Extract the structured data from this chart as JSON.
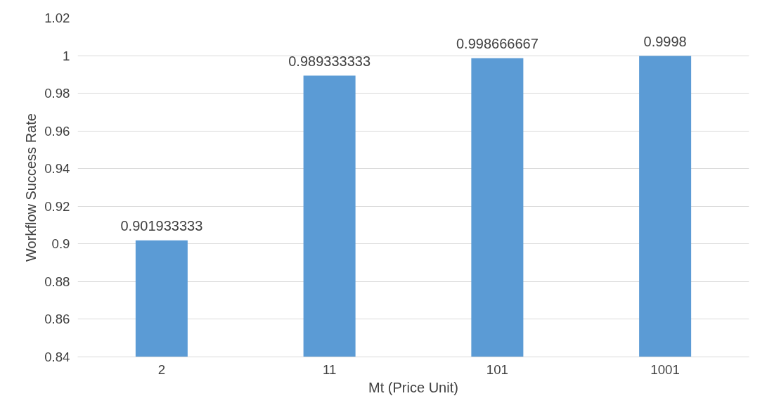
{
  "chart_data": {
    "type": "bar",
    "xlabel": "Mt (Price Unit)",
    "ylabel": "Workflow Success Rate",
    "categories": [
      "2",
      "11",
      "101",
      "1001"
    ],
    "values": [
      0.901933333,
      0.989333333,
      0.998666667,
      0.9998
    ],
    "color": "#5b9bd5",
    "ylim": [
      0.84,
      1.02
    ],
    "yticks": [
      0.84,
      0.86,
      0.88,
      0.9,
      0.92,
      0.94,
      0.96,
      0.98,
      1,
      1.02
    ],
    "grid": "y",
    "data_labels": true
  }
}
